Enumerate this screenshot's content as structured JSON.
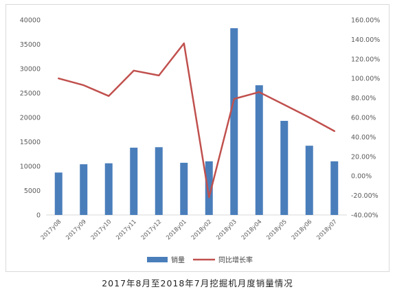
{
  "caption": "2017年8月至2018年7月挖掘机月度销量情况",
  "chart_data": {
    "type": "bar",
    "categories": [
      "2017y08",
      "2017y09",
      "2017y10",
      "2017y11",
      "2017y12",
      "2018y01",
      "2018y02",
      "2018y03",
      "2018y04",
      "2018y05",
      "2018y06",
      "2018y07"
    ],
    "series": [
      {
        "name": "销量",
        "kind": "bar",
        "axis": "left",
        "color": "#4a7ebb",
        "values": [
          8700,
          10400,
          10600,
          13800,
          13900,
          10700,
          11000,
          38300,
          26600,
          19300,
          14200,
          11000
        ]
      },
      {
        "name": "同比增长率",
        "kind": "line",
        "axis": "right",
        "color": "#c0504d",
        "values": [
          100,
          93,
          82,
          108,
          103,
          136,
          -22,
          79,
          86,
          73,
          60,
          46
        ]
      }
    ],
    "y_left": {
      "min": 0,
      "max": 40000,
      "step": 5000,
      "ticks": [
        "0",
        "5000",
        "10000",
        "15000",
        "20000",
        "25000",
        "30000",
        "35000",
        "40000"
      ]
    },
    "y_right": {
      "min": -40,
      "max": 160,
      "step": 20,
      "ticks": [
        "-40.00%",
        "-20.00%",
        "0.00%",
        "20.00%",
        "40.00%",
        "60.00%",
        "80.00%",
        "100.00%",
        "120.00%",
        "140.00%",
        "160.00%"
      ]
    },
    "grid": false,
    "legend_position": "bottom"
  }
}
